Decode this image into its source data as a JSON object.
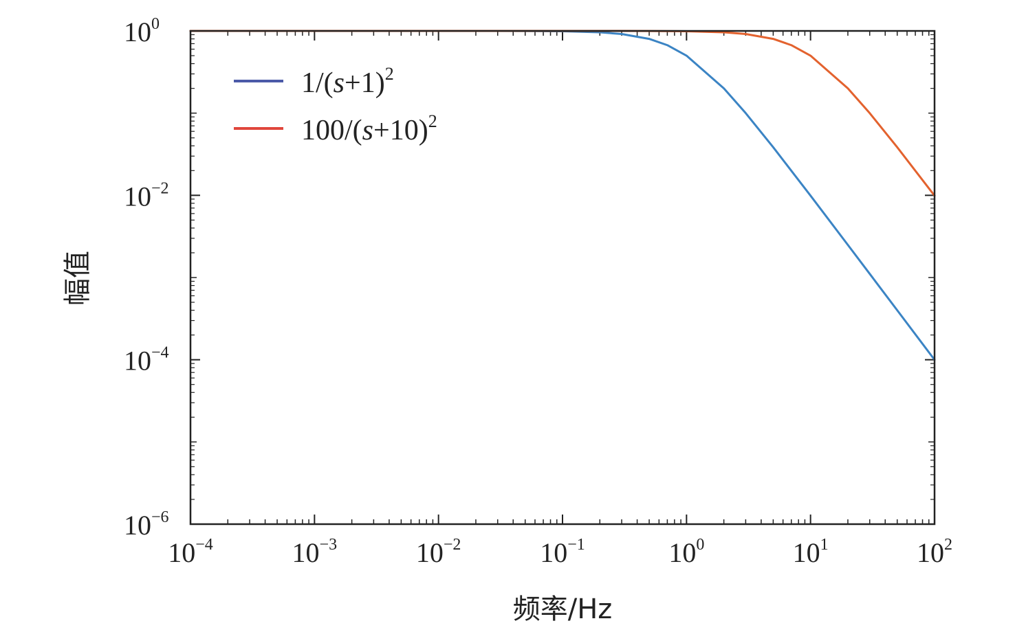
{
  "chart_data": {
    "type": "line",
    "xlabel": "频率/Hz",
    "ylabel": "幅值",
    "xscale": "log",
    "yscale": "log",
    "xlim": [
      0.0001,
      100
    ],
    "ylim": [
      1e-06,
      1
    ],
    "x_ticks": [
      {
        "base": "10",
        "exp": "−4"
      },
      {
        "base": "10",
        "exp": "−3"
      },
      {
        "base": "10",
        "exp": "−2"
      },
      {
        "base": "10",
        "exp": "−1"
      },
      {
        "base": "10",
        "exp": "0"
      },
      {
        "base": "10",
        "exp": "1"
      },
      {
        "base": "10",
        "exp": "2"
      }
    ],
    "y_ticks": [
      {
        "base": "10",
        "exp": "0"
      },
      {
        "base": "10",
        "exp": "−2"
      },
      {
        "base": "10",
        "exp": "−4"
      },
      {
        "base": "10",
        "exp": "−6"
      }
    ],
    "legend_position": "top-left",
    "grid": false,
    "series": [
      {
        "name": "1/(s+1)2",
        "legend_parts": {
          "prefix": "1/(",
          "var": "s",
          "suffix": "+1)",
          "sup": "2"
        },
        "color": "#3b84c4",
        "x": [
          0.0001,
          0.001,
          0.01,
          0.03,
          0.05,
          0.08,
          0.1,
          0.2,
          0.3,
          0.5,
          0.7,
          1,
          2,
          3,
          5,
          10,
          20,
          30,
          50,
          100
        ],
        "y": [
          1.0,
          1.0,
          0.9999,
          0.9991,
          0.9975,
          0.9936,
          0.9901,
          0.9615,
          0.9174,
          0.8,
          0.6711,
          0.5,
          0.2,
          0.1,
          0.03846,
          0.009901,
          0.002494,
          0.00111,
          0.0003998,
          9.99e-05
        ]
      },
      {
        "name": "100/(s+10)2",
        "legend_parts": {
          "prefix": "100/(",
          "var": "s",
          "suffix": "+10)",
          "sup": "2"
        },
        "color": "#e3622e",
        "x": [
          0.0001,
          0.001,
          0.01,
          0.1,
          0.3,
          0.5,
          0.8,
          1,
          2,
          3,
          5,
          7,
          10,
          20,
          30,
          50,
          100
        ],
        "y": [
          1.0,
          1.0,
          1.0,
          0.9999,
          0.9991,
          0.9975,
          0.9936,
          0.9901,
          0.9615,
          0.9174,
          0.8,
          0.6711,
          0.5,
          0.2,
          0.1,
          0.03846,
          0.009901
        ]
      }
    ]
  }
}
